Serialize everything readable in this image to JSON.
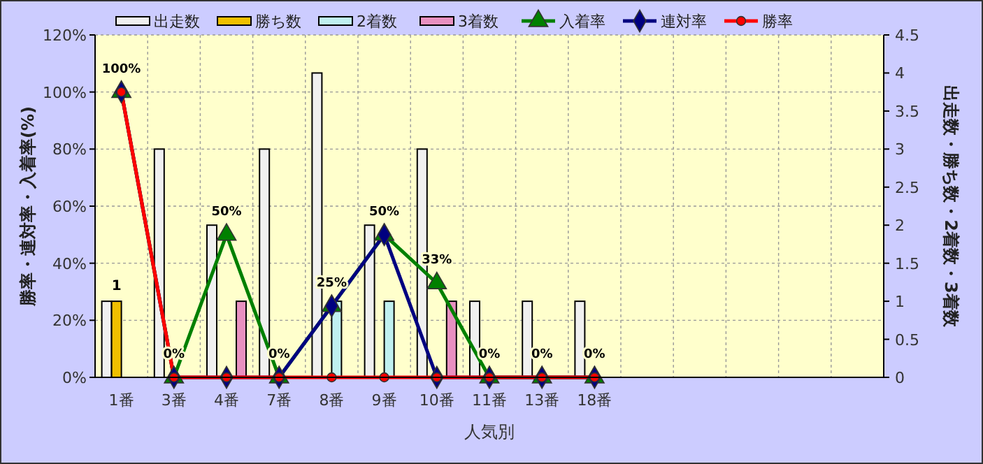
{
  "chart_data": {
    "type": "bar",
    "xlabel": "人気別",
    "ylabel": "勝率・連対率・入着率(%)",
    "y2label": "出走数・勝ち数・2着数・3着数",
    "categories": [
      "1番",
      "3番",
      "4番",
      "7番",
      "8番",
      "9番",
      "10番",
      "11番",
      "13番",
      "18番",
      null,
      null,
      null,
      null,
      null
    ],
    "series": [
      {
        "name": "出走数",
        "axis": "y2",
        "color": "#f0f0f0",
        "values": [
          1,
          3,
          2,
          3,
          4,
          2,
          3,
          1,
          1,
          1,
          null,
          null,
          null,
          null,
          null
        ]
      },
      {
        "name": "勝ち数",
        "axis": "y2",
        "color": "#f0c000",
        "values": [
          1,
          0,
          0,
          0,
          0,
          0,
          0,
          0,
          0,
          0,
          null,
          null,
          null,
          null,
          null
        ],
        "value_labels": [
          "1",
          null,
          null,
          null,
          null,
          null,
          null,
          null,
          null,
          null,
          null,
          null,
          null,
          null,
          null
        ]
      },
      {
        "name": "2着数",
        "axis": "y2",
        "color": "#c0f0f0",
        "values": [
          0,
          0,
          0,
          0,
          1,
          1,
          0,
          0,
          0,
          0,
          null,
          null,
          null,
          null,
          null
        ]
      },
      {
        "name": "3着数",
        "axis": "y2",
        "color": "#e890c0",
        "values": [
          0,
          0,
          1,
          0,
          0,
          0,
          1,
          0,
          0,
          0,
          null,
          null,
          null,
          null,
          null
        ]
      },
      {
        "name": "入着率",
        "type": "line",
        "color": "#008000",
        "marker": "triangle",
        "values": [
          100,
          0,
          50,
          0,
          25,
          50,
          33,
          0,
          0,
          0,
          null,
          null,
          null,
          null,
          null
        ],
        "value_labels": [
          "100%",
          "0%",
          "50%",
          "0%",
          "25%",
          "50%",
          "33%",
          "0%",
          "0%",
          "0%",
          null,
          null,
          null,
          null,
          null
        ]
      },
      {
        "name": "連対率",
        "type": "line",
        "color": "#000080",
        "marker": "diamond",
        "values": [
          100,
          0,
          0,
          0,
          25,
          50,
          0,
          0,
          0,
          0,
          null,
          null,
          null,
          null,
          null
        ]
      },
      {
        "name": "勝率",
        "type": "line",
        "color": "#ff0000",
        "marker": "circle",
        "values": [
          100,
          0,
          0,
          0,
          0,
          0,
          0,
          0,
          0,
          0,
          null,
          null,
          null,
          null,
          null
        ]
      }
    ],
    "ylim": [
      0,
      120
    ],
    "yticks": [
      {
        "value": 0,
        "label": "0%"
      },
      {
        "value": 20,
        "label": "20%"
      },
      {
        "value": 40,
        "label": "40%"
      },
      {
        "value": 60,
        "label": "60%"
      },
      {
        "value": 80,
        "label": "80%"
      },
      {
        "value": 100,
        "label": "100%"
      },
      {
        "value": 120,
        "label": "120%"
      }
    ],
    "y2lim": [
      0,
      4.5
    ],
    "y2ticks": [
      0,
      0.5,
      1,
      1.5,
      2,
      2.5,
      3,
      3.5,
      4,
      4.5
    ],
    "grid": true,
    "legend": "top"
  }
}
